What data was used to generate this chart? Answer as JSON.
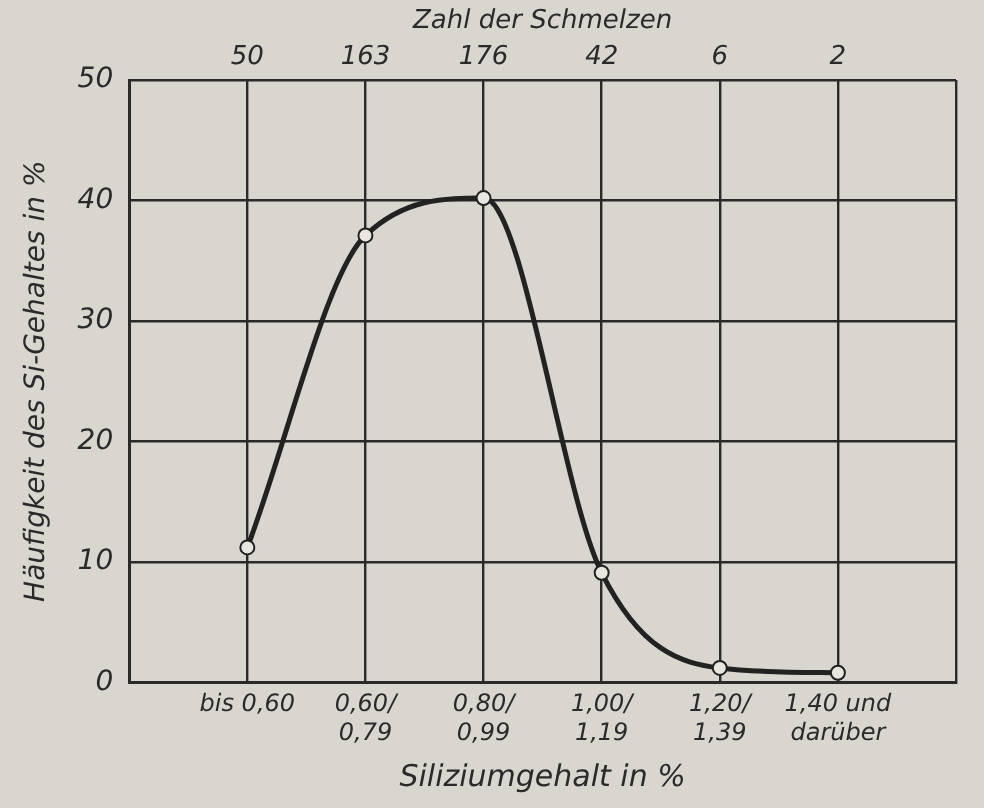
{
  "chart_data": {
    "type": "line",
    "xlabel": "Siliziumgehalt in %",
    "ylabel": "Häufigkeit des Si-Gehaltes in %",
    "x2label": "Zahl der Schmelzen",
    "categories": [
      "bis 0,60",
      "0,60/0,79",
      "0,80/0,99",
      "1,00/1,19",
      "1,20/1,39",
      "1,40 und darüber"
    ],
    "series": [
      {
        "color": "#222222",
        "values": [
          11.2,
          37.1,
          40.2,
          9.1,
          1.2,
          0.8
        ]
      }
    ],
    "ylim": [
      0,
      50
    ],
    "yticks": [
      0,
      10,
      20,
      30,
      40,
      50
    ],
    "grid": true,
    "legend": false,
    "marker": "circle",
    "line_style": "solid",
    "annotations": [
      "50",
      "163",
      "176",
      "42",
      "6",
      "2"
    ]
  }
}
